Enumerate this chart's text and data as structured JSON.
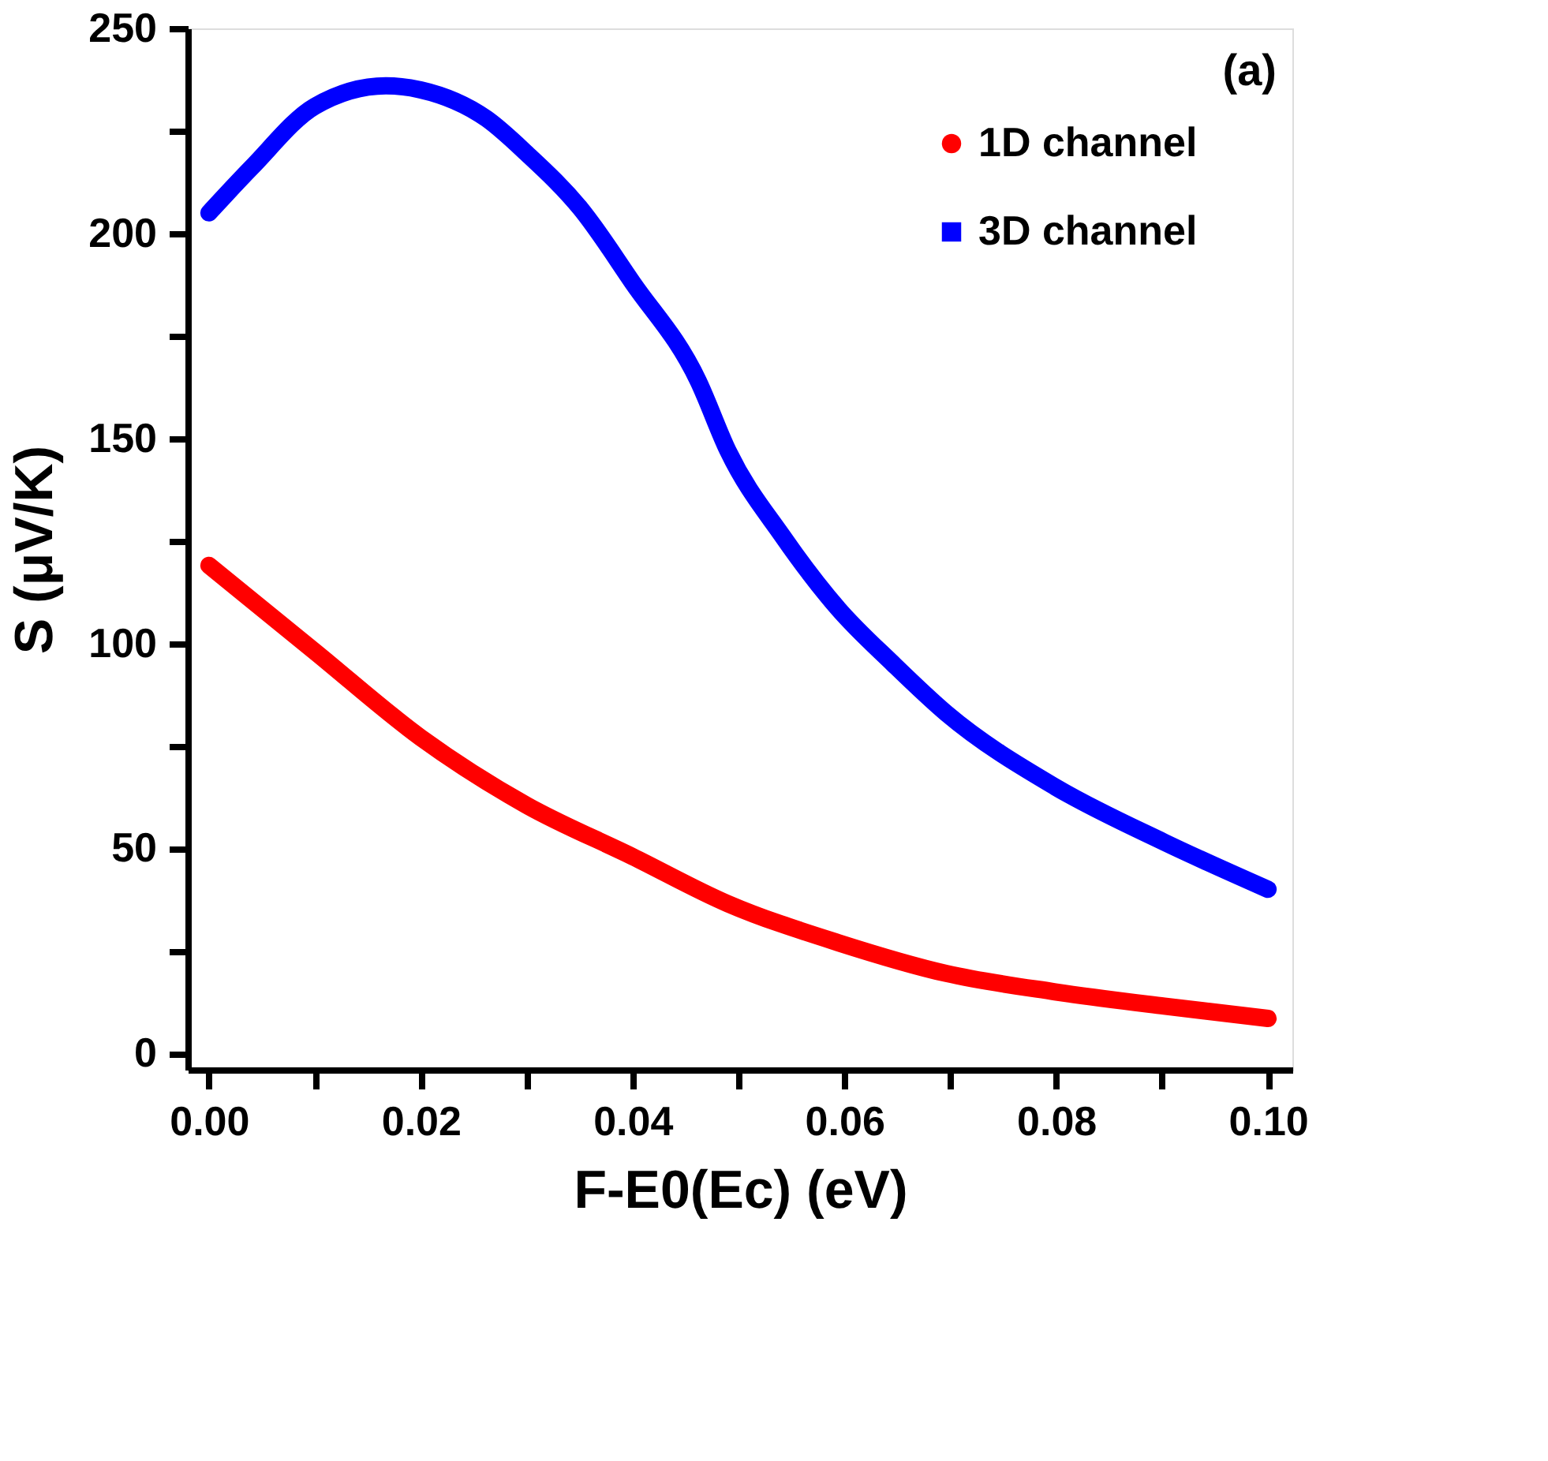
{
  "chart_data": {
    "type": "line",
    "xlabel": "F-E0(Ec) (eV)",
    "ylabel": "S (μV/K)",
    "annotations": [
      "(a)"
    ],
    "xlim": [
      -0.002,
      0.1023
    ],
    "ylim": [
      -4,
      250
    ],
    "xticks": [
      {
        "value": 0,
        "label": "0.00"
      },
      {
        "value": 0.01,
        "label": null
      },
      {
        "value": 0.02,
        "label": "0.02"
      },
      {
        "value": 0.03,
        "label": null
      },
      {
        "value": 0.04,
        "label": "0.04"
      },
      {
        "value": 0.05,
        "label": null
      },
      {
        "value": 0.06,
        "label": "0.06"
      },
      {
        "value": 0.07,
        "label": null
      },
      {
        "value": 0.08,
        "label": "0.08"
      },
      {
        "value": 0.09,
        "label": null
      },
      {
        "value": 0.1,
        "label": "0.10"
      }
    ],
    "yticks": [
      0,
      {
        "value": 25,
        "label": null
      },
      50,
      {
        "value": 75,
        "label": null
      },
      100,
      {
        "value": 125,
        "label": null
      },
      150,
      {
        "value": 175,
        "label": null
      },
      200,
      {
        "value": 225,
        "label": null
      },
      250
    ],
    "legend": "top right",
    "grid": false,
    "series": [
      {
        "name": "1D channel",
        "color": "#ff0000",
        "marker": "circle",
        "x": [
          0,
          0.01,
          0.02,
          0.03,
          0.04,
          0.049,
          0.0594,
          0.0696,
          0.0799,
          0.0902,
          0.1
        ],
        "values": [
          119,
          98,
          77,
          60.5,
          48,
          36.5,
          27,
          19.5,
          15,
          11.5,
          8.5
        ]
      },
      {
        "name": "3D channel",
        "color": "#0000ff",
        "marker": "square",
        "x": [
          0,
          0.004,
          0.01,
          0.0167,
          0.02,
          0.0262,
          0.03,
          0.0351,
          0.04,
          0.0462,
          0.049,
          0.0542,
          0.0594,
          0.0646,
          0.0696,
          0.0799,
          0.0902,
          0.1
        ],
        "values": [
          205,
          216,
          231,
          236,
          235,
          228,
          219.5,
          206,
          188,
          164,
          147,
          126,
          108.5,
          95,
          83,
          65,
          51.5,
          40
        ]
      }
    ]
  }
}
